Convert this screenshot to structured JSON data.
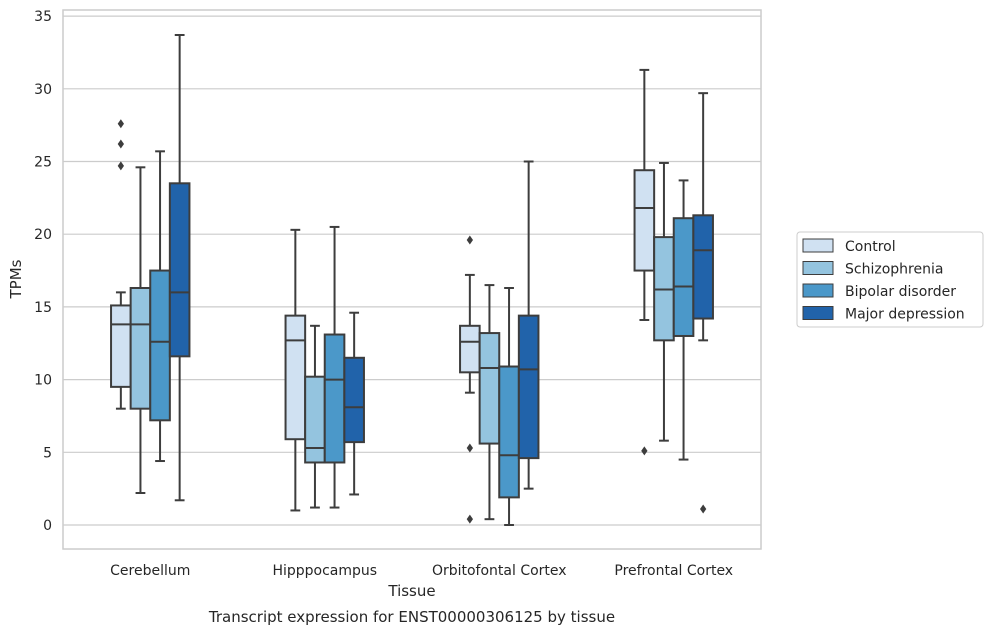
{
  "chart_data": {
    "type": "boxplot",
    "caption": "Transcript expression for ENST00000306125 by tissue",
    "xlabel": "Tissue",
    "ylabel": "TPMs",
    "ylim": [
      -1.5,
      35.5
    ],
    "yticks": [
      0,
      5,
      10,
      15,
      20,
      25,
      30,
      35
    ],
    "grid": "horizontal",
    "legend_position": "right",
    "categories": [
      "Cerebellum",
      "Hipppocampus",
      "Orbitofontal Cortex",
      "Prefrontal Cortex"
    ],
    "series": [
      {
        "name": "Control",
        "color": "#d0e1f2",
        "boxes": [
          {
            "whisker_low": 8.0,
            "q1": 9.5,
            "median": 13.8,
            "q3": 15.1,
            "whisker_high": 16.0,
            "outliers": [
              24.7,
              26.2,
              27.6
            ]
          },
          {
            "whisker_low": 1.0,
            "q1": 5.9,
            "median": 12.7,
            "q3": 14.4,
            "whisker_high": 20.3,
            "outliers": []
          },
          {
            "whisker_low": 9.1,
            "q1": 10.5,
            "median": 12.6,
            "q3": 13.7,
            "whisker_high": 17.2,
            "outliers": [
              19.6,
              5.3,
              0.4
            ]
          },
          {
            "whisker_low": 14.1,
            "q1": 17.5,
            "median": 21.8,
            "q3": 24.4,
            "whisker_high": 31.3,
            "outliers": [
              5.1
            ]
          }
        ]
      },
      {
        "name": "Schizophrenia",
        "color": "#94c4df",
        "boxes": [
          {
            "whisker_low": 2.2,
            "q1": 8.0,
            "median": 13.8,
            "q3": 16.3,
            "whisker_high": 24.6,
            "outliers": []
          },
          {
            "whisker_low": 1.2,
            "q1": 4.3,
            "median": 5.3,
            "q3": 10.2,
            "whisker_high": 13.7,
            "outliers": []
          },
          {
            "whisker_low": 0.4,
            "q1": 5.6,
            "median": 10.8,
            "q3": 13.2,
            "whisker_high": 16.5,
            "outliers": []
          },
          {
            "whisker_low": 5.8,
            "q1": 12.7,
            "median": 16.2,
            "q3": 19.8,
            "whisker_high": 24.9,
            "outliers": []
          }
        ]
      },
      {
        "name": "Bipolar disorder",
        "color": "#4b98c9",
        "boxes": [
          {
            "whisker_low": 4.4,
            "q1": 7.2,
            "median": 12.6,
            "q3": 17.5,
            "whisker_high": 25.7,
            "outliers": []
          },
          {
            "whisker_low": 1.2,
            "q1": 4.3,
            "median": 10.0,
            "q3": 13.1,
            "whisker_high": 20.5,
            "outliers": []
          },
          {
            "whisker_low": 0.0,
            "q1": 1.9,
            "median": 4.8,
            "q3": 10.9,
            "whisker_high": 16.3,
            "outliers": []
          },
          {
            "whisker_low": 4.5,
            "q1": 13.0,
            "median": 16.4,
            "q3": 21.1,
            "whisker_high": 23.7,
            "outliers": []
          }
        ]
      },
      {
        "name": "Major depression",
        "color": "#2163aa",
        "boxes": [
          {
            "whisker_low": 1.7,
            "q1": 11.6,
            "median": 16.0,
            "q3": 23.5,
            "whisker_high": 33.7,
            "outliers": []
          },
          {
            "whisker_low": 2.1,
            "q1": 5.7,
            "median": 8.1,
            "q3": 11.5,
            "whisker_high": 14.6,
            "outliers": []
          },
          {
            "whisker_low": 2.5,
            "q1": 4.6,
            "median": 10.7,
            "q3": 14.4,
            "whisker_high": 25.0,
            "outliers": []
          },
          {
            "whisker_low": 12.7,
            "q1": 14.2,
            "median": 18.9,
            "q3": 21.3,
            "whisker_high": 29.7,
            "outliers": [
              1.1
            ]
          }
        ]
      }
    ]
  }
}
